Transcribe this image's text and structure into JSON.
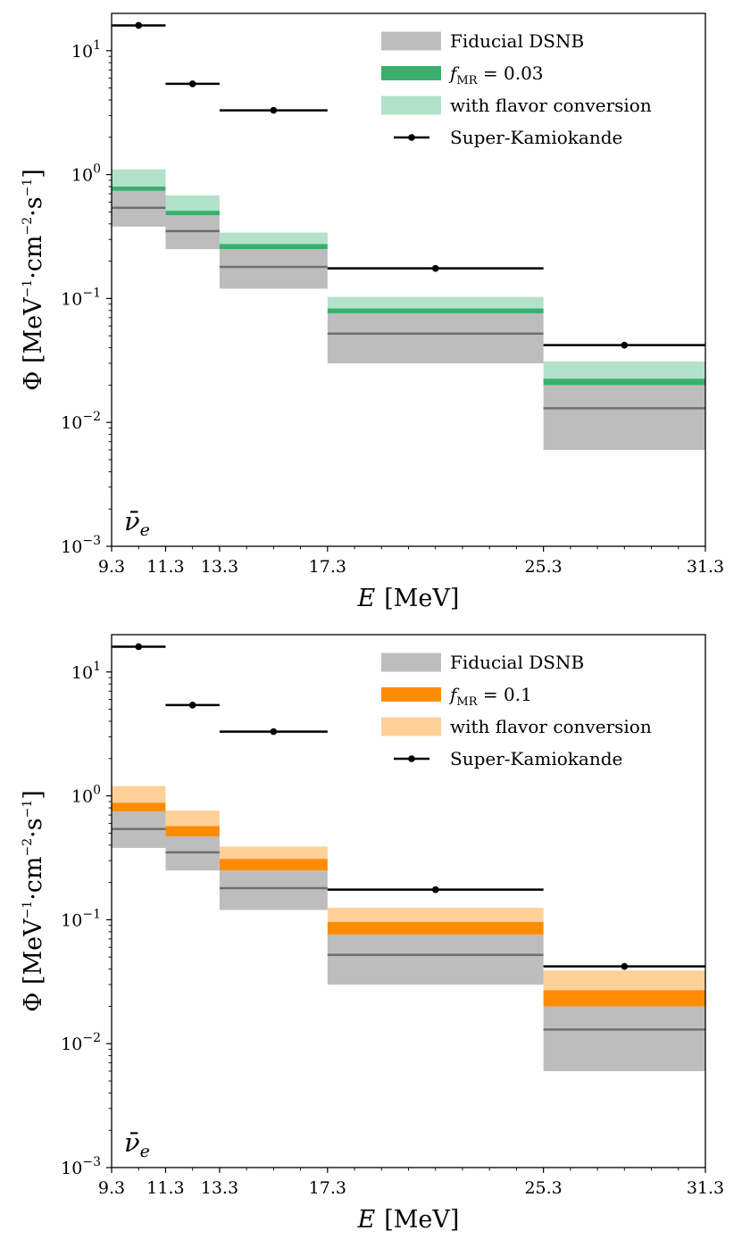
{
  "chart_data": [
    {
      "type": "bar",
      "panel": "top",
      "xlabel_var": "E",
      "xlabel_unit": "[MeV]",
      "ylabel_prefix": "Φ [MeV",
      "ylabel_mid": "·cm",
      "ylabel_mid2": "·s",
      "ylabel_end": "]",
      "ylabel_exp": "−1",
      "ylabel_exp2": "−2",
      "xlim": [
        9.3,
        31.3
      ],
      "ylim": [
        0.001,
        20
      ],
      "yscale": "log",
      "x_ticks": [
        "9.3",
        "11.3",
        "13.3",
        "17.3",
        "25.3",
        "31.3"
      ],
      "x_tick_values": [
        9.3,
        11.3,
        13.3,
        17.3,
        25.3,
        31.3
      ],
      "y_ticks": [
        {
          "base": "10",
          "exp": "1",
          "value": 10
        },
        {
          "base": "10",
          "exp": "0",
          "value": 1
        },
        {
          "base": "10",
          "exp": "−1",
          "value": 0.1
        },
        {
          "base": "10",
          "exp": "−2",
          "value": 0.01
        },
        {
          "base": "10",
          "exp": "−3",
          "value": 0.001
        }
      ],
      "flavor_label": "ν̄",
      "flavor_sub": "e",
      "bins": [
        {
          "lo": 9.3,
          "hi": 11.3,
          "fid_low": 0.38,
          "fid_mid": 0.54,
          "fid_high": 0.75,
          "mr_low": 0.74,
          "mr_high": 0.8,
          "flav_low": 0.75,
          "flav_high": 1.1
        },
        {
          "lo": 11.3,
          "hi": 13.3,
          "fid_low": 0.25,
          "fid_mid": 0.35,
          "fid_high": 0.47,
          "mr_low": 0.47,
          "mr_high": 0.51,
          "flav_low": 0.47,
          "flav_high": 0.68
        },
        {
          "lo": 13.3,
          "hi": 17.3,
          "fid_low": 0.12,
          "fid_mid": 0.18,
          "fid_high": 0.25,
          "mr_low": 0.25,
          "mr_high": 0.275,
          "flav_low": 0.25,
          "flav_high": 0.34
        },
        {
          "lo": 17.3,
          "hi": 25.3,
          "fid_low": 0.03,
          "fid_mid": 0.052,
          "fid_high": 0.076,
          "mr_low": 0.076,
          "mr_high": 0.083,
          "flav_low": 0.076,
          "flav_high": 0.103
        },
        {
          "lo": 25.3,
          "hi": 31.3,
          "fid_low": 0.006,
          "fid_mid": 0.013,
          "fid_high": 0.02,
          "mr_low": 0.02,
          "mr_high": 0.0225,
          "flav_low": 0.02,
          "flav_high": 0.031
        }
      ],
      "super_k": [
        {
          "lo": 9.3,
          "hi": 11.3,
          "x": 10.3,
          "y": 16
        },
        {
          "lo": 11.3,
          "hi": 13.3,
          "x": 12.3,
          "y": 5.4
        },
        {
          "lo": 13.3,
          "hi": 17.3,
          "x": 15.3,
          "y": 3.3
        },
        {
          "lo": 17.3,
          "hi": 25.3,
          "x": 21.3,
          "y": 0.175
        },
        {
          "lo": 25.3,
          "hi": 31.3,
          "x": 28.3,
          "y": 0.042
        }
      ],
      "legend": {
        "position": "top-right",
        "fiducial": "Fiducial DSNB",
        "mr_prefix": "f",
        "mr_sub": "MR",
        "mr_value": " = 0.03",
        "flavor": "with flavor conversion",
        "superk": "Super-Kamiokande"
      },
      "colors": {
        "fiducial_band": "#bdbdbd",
        "fiducial_line": "#6e6e6e",
        "mr": "#3aaf6c",
        "flavor": "#b2e2c8",
        "superk": "#000000"
      }
    },
    {
      "type": "bar",
      "panel": "bottom",
      "xlabel_var": "E",
      "xlabel_unit": "[MeV]",
      "ylabel_prefix": "Φ [MeV",
      "ylabel_mid": "·cm",
      "ylabel_mid2": "·s",
      "ylabel_end": "]",
      "ylabel_exp": "−1",
      "ylabel_exp2": "−2",
      "xlim": [
        9.3,
        31.3
      ],
      "ylim": [
        0.001,
        20
      ],
      "yscale": "log",
      "x_ticks": [
        "9.3",
        "11.3",
        "13.3",
        "17.3",
        "25.3",
        "31.3"
      ],
      "x_tick_values": [
        9.3,
        11.3,
        13.3,
        17.3,
        25.3,
        31.3
      ],
      "y_ticks": [
        {
          "base": "10",
          "exp": "1",
          "value": 10
        },
        {
          "base": "10",
          "exp": "0",
          "value": 1
        },
        {
          "base": "10",
          "exp": "−1",
          "value": 0.1
        },
        {
          "base": "10",
          "exp": "−2",
          "value": 0.01
        },
        {
          "base": "10",
          "exp": "−3",
          "value": 0.001
        }
      ],
      "flavor_label": "ν̄",
      "flavor_sub": "e",
      "bins": [
        {
          "lo": 9.3,
          "hi": 11.3,
          "fid_low": 0.38,
          "fid_mid": 0.54,
          "fid_high": 0.75,
          "mr_low": 0.75,
          "mr_high": 0.88,
          "flav_low": 0.88,
          "flav_high": 1.2
        },
        {
          "lo": 11.3,
          "hi": 13.3,
          "fid_low": 0.25,
          "fid_mid": 0.35,
          "fid_high": 0.47,
          "mr_low": 0.47,
          "mr_high": 0.57,
          "flav_low": 0.57,
          "flav_high": 0.76
        },
        {
          "lo": 13.3,
          "hi": 17.3,
          "fid_low": 0.12,
          "fid_mid": 0.18,
          "fid_high": 0.25,
          "mr_low": 0.25,
          "mr_high": 0.31,
          "flav_low": 0.31,
          "flav_high": 0.39
        },
        {
          "lo": 17.3,
          "hi": 25.3,
          "fid_low": 0.03,
          "fid_mid": 0.052,
          "fid_high": 0.076,
          "mr_low": 0.076,
          "mr_high": 0.096,
          "flav_low": 0.096,
          "flav_high": 0.125
        },
        {
          "lo": 25.3,
          "hi": 31.3,
          "fid_low": 0.006,
          "fid_mid": 0.013,
          "fid_high": 0.02,
          "mr_low": 0.02,
          "mr_high": 0.027,
          "flav_low": 0.027,
          "flav_high": 0.039
        }
      ],
      "super_k": [
        {
          "lo": 9.3,
          "hi": 11.3,
          "x": 10.3,
          "y": 16
        },
        {
          "lo": 11.3,
          "hi": 13.3,
          "x": 12.3,
          "y": 5.4
        },
        {
          "lo": 13.3,
          "hi": 17.3,
          "x": 15.3,
          "y": 3.3
        },
        {
          "lo": 17.3,
          "hi": 25.3,
          "x": 21.3,
          "y": 0.175
        },
        {
          "lo": 25.3,
          "hi": 31.3,
          "x": 28.3,
          "y": 0.042
        }
      ],
      "legend": {
        "position": "top-right",
        "fiducial": "Fiducial DSNB",
        "mr_prefix": "f",
        "mr_sub": "MR",
        "mr_value": " = 0.1",
        "flavor": "with flavor conversion",
        "superk": "Super-Kamiokande"
      },
      "colors": {
        "fiducial_band": "#bdbdbd",
        "fiducial_line": "#6e6e6e",
        "mr": "#ff8c00",
        "flavor": "#ffd199",
        "superk": "#000000"
      }
    }
  ]
}
